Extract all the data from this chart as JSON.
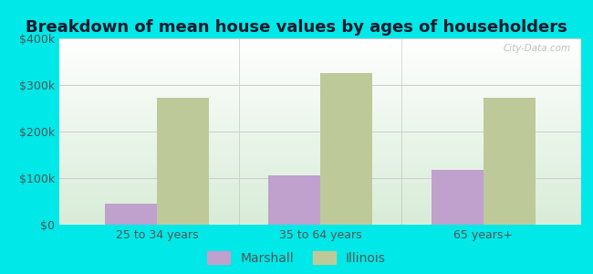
{
  "title": "Breakdown of mean house values by ages of householders",
  "categories": [
    "25 to 34 years",
    "35 to 64 years",
    "65 years+"
  ],
  "marshall_values": [
    45000,
    105000,
    118000
  ],
  "illinois_values": [
    272000,
    325000,
    272000
  ],
  "ylim": [
    0,
    400000
  ],
  "yticks": [
    0,
    100000,
    200000,
    300000,
    400000
  ],
  "ytick_labels": [
    "$0",
    "$100k",
    "$200k",
    "$300k",
    "$400k"
  ],
  "marshall_color": "#c0a0cc",
  "illinois_color": "#bec99a",
  "background_color": "#00e8e8",
  "bar_width": 0.32,
  "legend_labels": [
    "Marshall",
    "Illinois"
  ],
  "title_fontsize": 13,
  "tick_fontsize": 9,
  "legend_fontsize": 10,
  "watermark": "City-Data.com",
  "tick_color": "#555555",
  "title_color": "#1a1a2e"
}
